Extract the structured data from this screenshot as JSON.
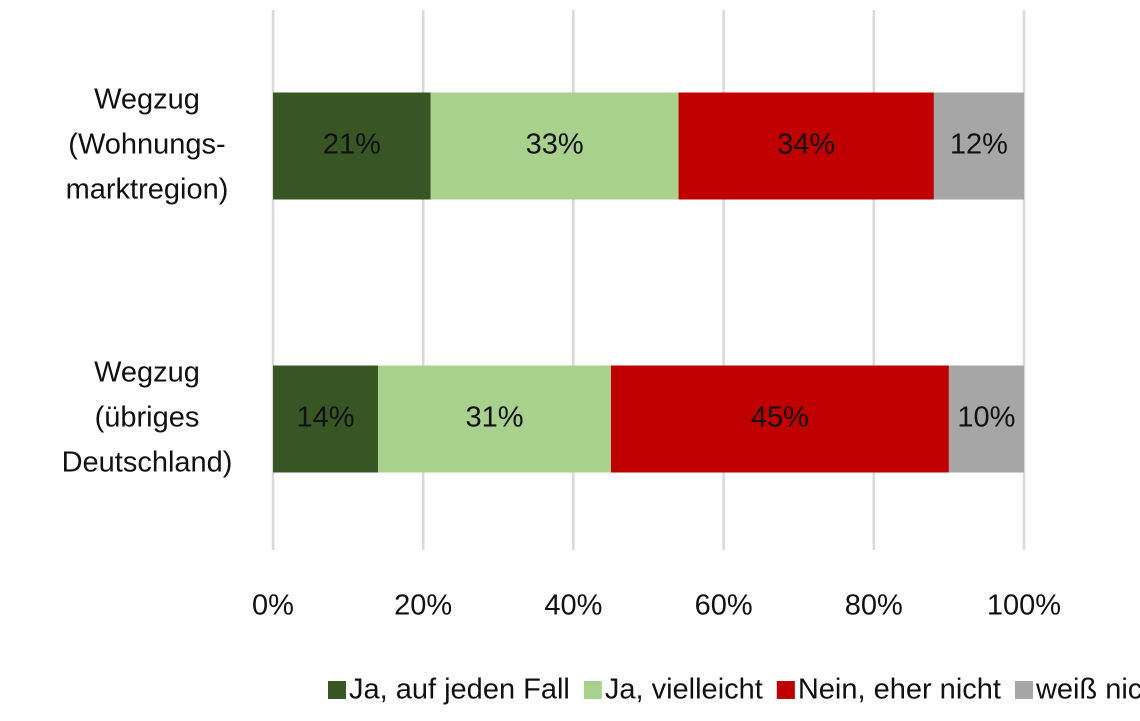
{
  "chart_data": {
    "type": "stacked-bar-horizontal",
    "categories": [
      [
        "Wegzug",
        "(Wohnungs-",
        "marktregion)"
      ],
      [
        "Wegzug",
        "(übriges",
        "Deutschland)"
      ]
    ],
    "series": [
      {
        "name": "Ja, auf jeden Fall",
        "color": "#375623",
        "values": [
          21,
          14
        ],
        "value_labels": [
          "21%",
          "14%"
        ]
      },
      {
        "name": "Ja, vielleicht",
        "color": "#a9d18e",
        "values": [
          33,
          31
        ],
        "value_labels": [
          "33%",
          "31%"
        ]
      },
      {
        "name": "Nein, eher nicht",
        "color": "#c00000",
        "values": [
          34,
          45
        ],
        "value_labels": [
          "34%",
          "45%"
        ]
      },
      {
        "name": "weiß nicht",
        "color": "#a6a6a6",
        "values": [
          12,
          10
        ],
        "value_labels": [
          "12%",
          "10%"
        ]
      }
    ],
    "xlim": [
      0,
      100
    ],
    "xticks": [
      {
        "value": 0,
        "label": "0%"
      },
      {
        "value": 20,
        "label": "20%"
      },
      {
        "value": 40,
        "label": "40%"
      },
      {
        "value": 60,
        "label": "60%"
      },
      {
        "value": 80,
        "label": "80%"
      },
      {
        "value": 100,
        "label": "100%"
      }
    ],
    "grid": true,
    "legend": "bottom"
  }
}
